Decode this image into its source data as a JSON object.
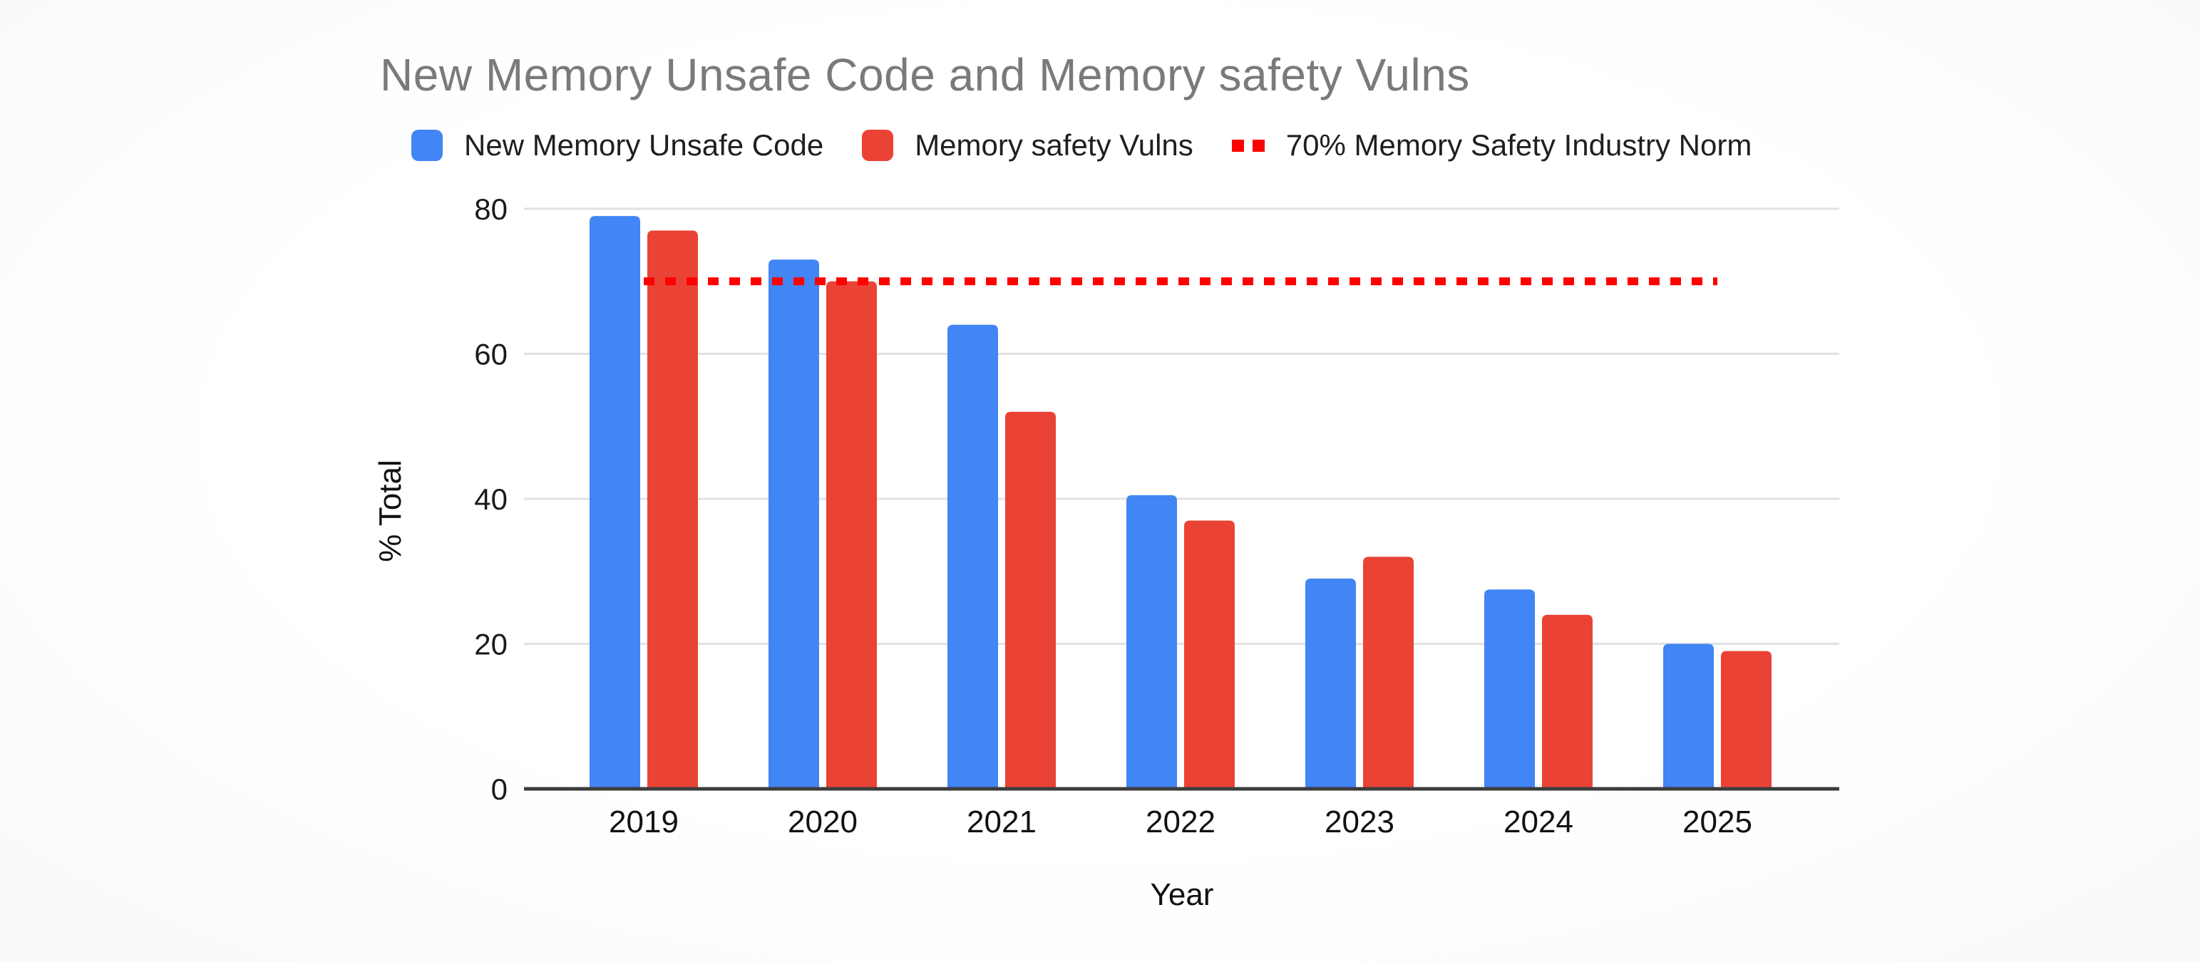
{
  "title": {
    "text": "New Memory Unsafe Code and Memory safety Vulns",
    "color": "#7a7a7a"
  },
  "legend": {
    "items": [
      {
        "label": "New Memory Unsafe Code",
        "swatch": "square",
        "color": "#4285F4"
      },
      {
        "label": "Memory safety Vulns",
        "swatch": "square",
        "color": "#EA4335"
      },
      {
        "label": "70% Memory Safety Industry Norm",
        "swatch": "dotted-line",
        "color": "#FF0000"
      }
    ]
  },
  "chart_data": {
    "type": "bar",
    "title": "New Memory Unsafe Code and Memory safety Vulns",
    "categories": [
      "2019",
      "2020",
      "2021",
      "2022",
      "2023",
      "2024",
      "2025"
    ],
    "series": [
      {
        "name": "New Memory Unsafe Code",
        "color": "#4285F4",
        "values": [
          79,
          73,
          64,
          40.5,
          29,
          27.5,
          20
        ]
      },
      {
        "name": "Memory safety Vulns",
        "color": "#EA4335",
        "values": [
          77,
          70,
          52,
          37,
          32,
          24,
          19
        ]
      }
    ],
    "reference_line": {
      "name": "70% Memory Safety Industry Norm",
      "value": 70,
      "color": "#FF0000",
      "style": "dotted"
    },
    "xlabel": "Year",
    "ylabel": "% Total",
    "yticks": [
      0,
      20,
      40,
      60,
      80
    ],
    "ylim": [
      0,
      80
    ],
    "grid": "horizontal",
    "grid_color": "#e2e2e2",
    "axis_line_color": "#3c3c3c",
    "legend_position": "top"
  }
}
